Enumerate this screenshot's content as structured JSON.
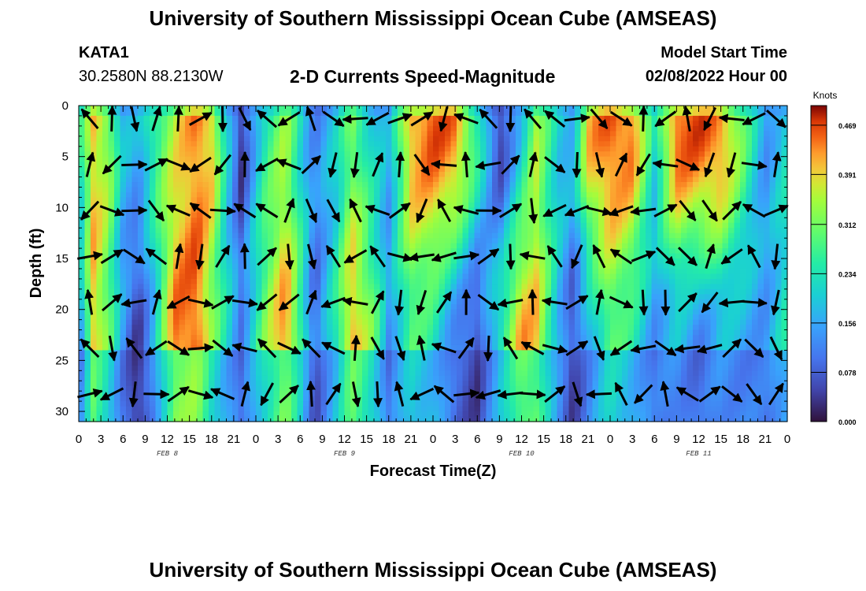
{
  "header": {
    "title": "University of Southern Mississippi Ocean Cube (AMSEAS)",
    "station": "KATA1",
    "coords": "30.2580N  88.2130W",
    "plot_title": "2-D Currents Speed-Magnitude",
    "model_start_label": "Model Start Time",
    "model_start_value": "02/08/2022 Hour 00"
  },
  "footer": {
    "title": "University of Southern Mississippi Ocean Cube (AMSEAS)"
  },
  "chart_data": {
    "type": "heatmap",
    "title": "2-D Currents Speed-Magnitude",
    "xlabel": "Forecast Time(Z)",
    "ylabel": "Depth (ft)",
    "x_tick_labels": [
      "0",
      "3",
      "6",
      "9",
      "12",
      "15",
      "18",
      "21",
      "0",
      "3",
      "6",
      "9",
      "12",
      "15",
      "18",
      "21",
      "0",
      "3",
      "6",
      "9",
      "12",
      "15",
      "18",
      "21",
      "0",
      "3",
      "6",
      "9",
      "12",
      "15",
      "18",
      "21",
      "0"
    ],
    "x_range_hours": [
      0,
      96
    ],
    "date_labels": [
      {
        "label": "FEB 8",
        "hour": 12
      },
      {
        "label": "FEB 9",
        "hour": 36
      },
      {
        "label": "FEB 10",
        "hour": 60
      },
      {
        "label": "FEB 11",
        "hour": 84
      }
    ],
    "y_ticks": [
      0,
      5,
      10,
      15,
      20,
      25,
      30
    ],
    "y_range_ft": [
      0,
      31
    ],
    "y_inverted": true,
    "colorbar": {
      "unit": "Knots",
      "ticks": [
        0.469,
        0.391,
        0.312,
        0.234,
        0.156,
        0.078,
        0.0
      ],
      "tick_labels": [
        "0.469",
        "0.391",
        "0.312",
        "0.234",
        "0.156",
        "0.078",
        "0.000"
      ],
      "range": [
        0,
        0.5
      ]
    },
    "speed_bands": [
      {
        "hour": 0,
        "shallow": 0.22,
        "deep": 0.12
      },
      {
        "hour": 2,
        "shallow": 0.4,
        "deep": 0.4
      },
      {
        "hour": 4,
        "shallow": 0.34,
        "deep": 0.3
      },
      {
        "hour": 6,
        "shallow": 0.18,
        "deep": 0.14
      },
      {
        "hour": 8,
        "shallow": 0.16,
        "deep": 0.04
      },
      {
        "hour": 10,
        "shallow": 0.26,
        "deep": 0.16
      },
      {
        "hour": 13,
        "shallow": 0.36,
        "deep": 0.44
      },
      {
        "hour": 16,
        "shallow": 0.44,
        "deep": 0.46
      },
      {
        "hour": 18,
        "shallow": 0.4,
        "deep": 0.32
      },
      {
        "hour": 20,
        "shallow": 0.2,
        "deep": 0.22
      },
      {
        "hour": 22,
        "shallow": 0.04,
        "deep": 0.12
      },
      {
        "hour": 25,
        "shallow": 0.24,
        "deep": 0.3
      },
      {
        "hour": 28,
        "shallow": 0.34,
        "deep": 0.44
      },
      {
        "hour": 30,
        "shallow": 0.22,
        "deep": 0.28
      },
      {
        "hour": 32,
        "shallow": 0.12,
        "deep": 0.08
      },
      {
        "hour": 35,
        "shallow": 0.2,
        "deep": 0.26
      },
      {
        "hour": 37,
        "shallow": 0.32,
        "deep": 0.42
      },
      {
        "hour": 40,
        "shallow": 0.2,
        "deep": 0.3
      },
      {
        "hour": 42,
        "shallow": 0.16,
        "deep": 0.14
      },
      {
        "hour": 45,
        "shallow": 0.42,
        "deep": 0.28
      },
      {
        "hour": 48,
        "shallow": 0.46,
        "deep": 0.24
      },
      {
        "hour": 51,
        "shallow": 0.44,
        "deep": 0.12
      },
      {
        "hour": 54,
        "shallow": 0.26,
        "deep": 0.06
      },
      {
        "hour": 57,
        "shallow": 0.04,
        "deep": 0.24
      },
      {
        "hour": 60,
        "shallow": 0.2,
        "deep": 0.42
      },
      {
        "hour": 62,
        "shallow": 0.34,
        "deep": 0.4
      },
      {
        "hour": 65,
        "shallow": 0.2,
        "deep": 0.18
      },
      {
        "hour": 67,
        "shallow": 0.18,
        "deep": 0.06
      },
      {
        "hour": 69,
        "shallow": 0.4,
        "deep": 0.16
      },
      {
        "hour": 72,
        "shallow": 0.46,
        "deep": 0.3
      },
      {
        "hour": 75,
        "shallow": 0.44,
        "deep": 0.24
      },
      {
        "hour": 78,
        "shallow": 0.22,
        "deep": 0.14
      },
      {
        "hour": 81,
        "shallow": 0.46,
        "deep": 0.18
      },
      {
        "hour": 84,
        "shallow": 0.46,
        "deep": 0.12
      },
      {
        "hour": 87,
        "shallow": 0.44,
        "deep": 0.18
      },
      {
        "hour": 90,
        "shallow": 0.3,
        "deep": 0.16
      },
      {
        "hour": 93,
        "shallow": 0.14,
        "deep": 0.14
      },
      {
        "hour": 96,
        "shallow": 0.22,
        "deep": 0.24
      }
    ],
    "vectors": "current direction arrows at each grid cell (direction only)"
  }
}
